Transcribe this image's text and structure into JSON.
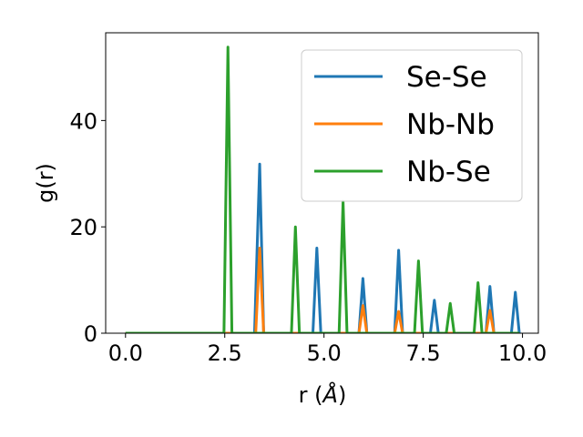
{
  "chart_data": {
    "type": "line",
    "xlabel": "r (Å)",
    "xlabel_parts": {
      "prefix": "r (",
      "unit": "Å",
      "suffix": ")"
    },
    "ylabel": "g(r)",
    "xlim": [
      -0.5,
      10.4
    ],
    "ylim": [
      0,
      56.5
    ],
    "xticks": [
      0.0,
      2.5,
      5.0,
      7.5,
      10.0
    ],
    "xtick_labels": [
      "0.0",
      "2.5",
      "5.0",
      "7.5",
      "10.0"
    ],
    "yticks": [
      0,
      20,
      40
    ],
    "ytick_labels": [
      "0",
      "20",
      "40"
    ],
    "grid": false,
    "legend_position": "top-right",
    "series": [
      {
        "name": "Se-Se",
        "color": "#1f77b4",
        "x": [
          0.0,
          3.25,
          3.38,
          3.48,
          4.72,
          4.82,
          4.92,
          5.88,
          5.98,
          6.08,
          6.78,
          6.88,
          6.98,
          7.68,
          7.78,
          7.88,
          9.08,
          9.18,
          9.28,
          9.72,
          9.82,
          9.92
        ],
        "y": [
          0,
          0,
          31.8,
          0,
          0,
          16.0,
          0,
          0,
          10.3,
          0,
          0,
          15.6,
          0,
          0,
          6.2,
          0,
          0,
          8.8,
          0,
          0,
          7.7,
          0
        ]
      },
      {
        "name": "Nb-Nb",
        "color": "#ff7f0e",
        "x": [
          0.0,
          3.28,
          3.38,
          3.48,
          5.88,
          5.98,
          6.08,
          6.78,
          6.88,
          6.98,
          9.08,
          9.18,
          9.28,
          9.92
        ],
        "y": [
          0,
          0,
          16.0,
          0,
          0,
          5.2,
          0,
          0,
          4.1,
          0,
          0,
          4.3,
          0,
          0
        ]
      },
      {
        "name": "Nb-Se",
        "color": "#2ca02c",
        "x": [
          0.0,
          2.48,
          2.58,
          2.68,
          4.18,
          4.28,
          4.38,
          5.38,
          5.48,
          5.58,
          7.28,
          7.38,
          7.48,
          8.08,
          8.18,
          8.28,
          8.78,
          8.88,
          8.98,
          9.92
        ],
        "y": [
          0,
          0,
          53.8,
          0,
          0,
          20.0,
          0,
          0,
          24.8,
          0,
          0,
          13.6,
          0,
          0,
          5.6,
          0,
          0,
          9.5,
          0,
          0
        ]
      }
    ]
  }
}
